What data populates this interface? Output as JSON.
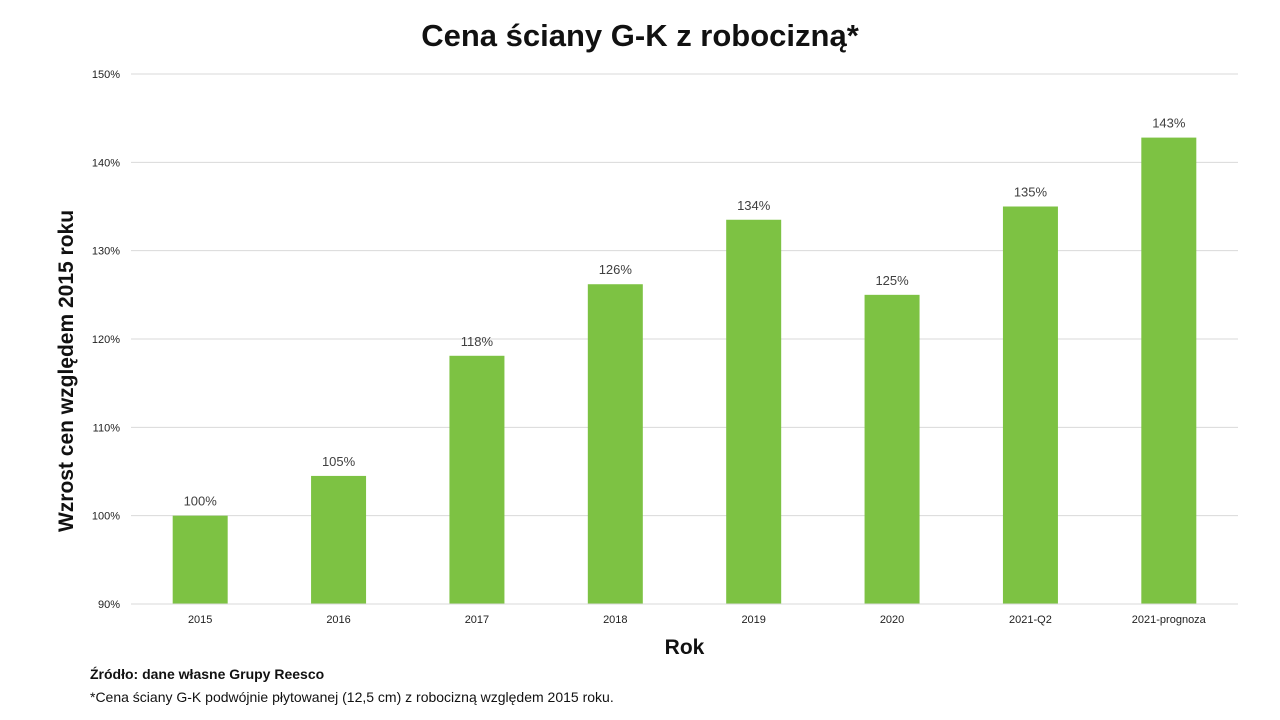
{
  "chart_data": {
    "type": "bar",
    "title": "Cena ściany G-K z robocizną*",
    "xlabel": "Rok",
    "ylabel": "Wzrost cen względem 2015 roku",
    "categories": [
      "2015",
      "2016",
      "2017",
      "2018",
      "2019",
      "2020",
      "2021-Q2",
      "2021-prognoza"
    ],
    "values": [
      100,
      104.5,
      118.1,
      126.2,
      133.5,
      125,
      135,
      142.8
    ],
    "data_labels": [
      "100%",
      "105%",
      "118%",
      "126%",
      "134%",
      "125%",
      "135%",
      "143%"
    ],
    "ylim": [
      90,
      150
    ],
    "yticks": [
      90,
      100,
      110,
      120,
      130,
      140,
      150
    ],
    "ytick_labels": [
      "90%",
      "100%",
      "110%",
      "120%",
      "130%",
      "140%",
      "150%"
    ],
    "grid": true,
    "legend": "none",
    "bar_color": "#7dc243"
  },
  "notes": {
    "source": "Źródło: dane własne Grupy Reesco",
    "footnote": "*Cena ściany G-K podwójnie płytowanej (12,5 cm) z robocizną względem 2015 roku."
  }
}
